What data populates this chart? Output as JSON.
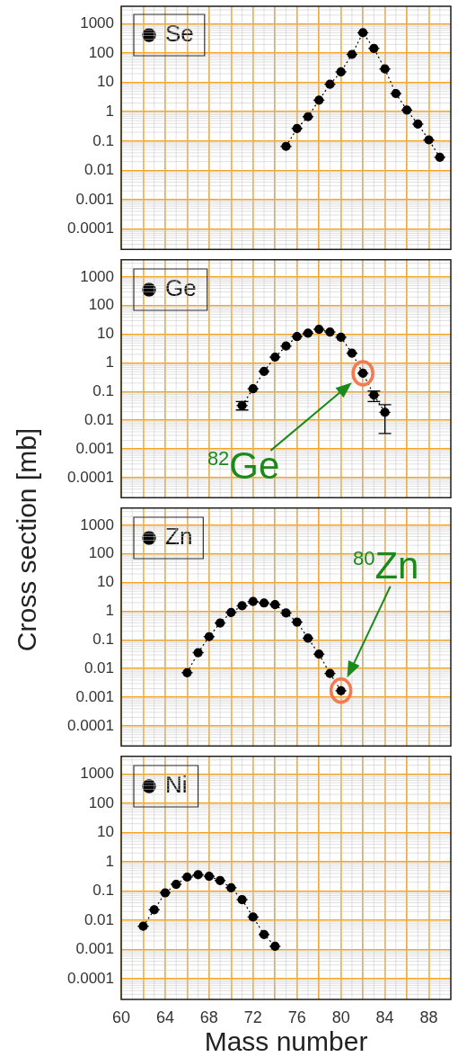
{
  "chart_data": [
    {
      "type": "line",
      "xlim": [
        60,
        90
      ],
      "xticks": [
        60,
        {
          "value": 62,
          "label": null
        },
        64,
        {
          "value": 66,
          "label": null
        },
        68,
        {
          "value": 70,
          "label": null
        },
        72,
        {
          "value": 74,
          "label": null
        },
        76,
        {
          "value": 78,
          "label": null
        },
        80,
        {
          "value": 82,
          "label": null
        },
        84,
        {
          "value": 86,
          "label": null
        },
        88
      ],
      "ylim": [
        2e-05,
        4000
      ],
      "yticks": [
        0.0001,
        0.001,
        0.01,
        0.1,
        1,
        10,
        100,
        1000
      ],
      "log": "y",
      "grid": true,
      "legend": "top left",
      "marker": "circle",
      "line_style": "dotted",
      "tick_labels": "y",
      "series": [
        {
          "name": "Se",
          "color": "#000000",
          "x": [
            75,
            76,
            77,
            78,
            79,
            80,
            81,
            82,
            83,
            84,
            85,
            86,
            87,
            88,
            89
          ],
          "values": [
            0.066,
            0.27,
            0.68,
            2.5,
            8.7,
            23,
            91,
            500,
            146,
            29,
            4.2,
            1.15,
            0.38,
            0.11,
            0.028
          ],
          "xerrors": [
            0.5,
            0.5,
            0.5,
            0.5,
            0.5,
            0.5,
            0.5,
            0.5,
            0.5,
            0.5,
            0.5,
            0.5,
            0.5,
            0.5,
            0.5
          ]
        }
      ]
    },
    {
      "type": "line",
      "xlim": [
        60,
        90
      ],
      "xticks": [
        60,
        {
          "value": 62,
          "label": null
        },
        64,
        {
          "value": 66,
          "label": null
        },
        68,
        {
          "value": 70,
          "label": null
        },
        72,
        {
          "value": 74,
          "label": null
        },
        76,
        {
          "value": 78,
          "label": null
        },
        80,
        {
          "value": 82,
          "label": null
        },
        84,
        {
          "value": 86,
          "label": null
        },
        88
      ],
      "ylim": [
        2e-05,
        4000
      ],
      "yticks": [
        0.0001,
        0.001,
        0.01,
        0.1,
        1,
        10,
        100,
        1000
      ],
      "log": "y",
      "grid": true,
      "legend": "top left",
      "marker": "circle",
      "line_style": "dotted",
      "tick_labels": "y",
      "annotations": [
        {
          "text": "$^{82}$Ge",
          "x": 82,
          "y": 0.44
        }
      ],
      "series": [
        {
          "name": "Ge",
          "color": "#000000",
          "x": [
            71,
            72,
            73,
            74,
            75,
            76,
            77,
            78,
            79,
            80,
            81,
            82,
            83,
            84
          ],
          "values": [
            0.033,
            0.126,
            0.51,
            1.6,
            3.9,
            8.3,
            11,
            15,
            12,
            7.9,
            2.2,
            0.44,
            0.076,
            0.019
          ],
          "xerrors": [
            0.5,
            0.5,
            0.5,
            0.5,
            0.5,
            0.5,
            0.5,
            0.5,
            0.5,
            0.5,
            0.5,
            0.5,
            0.5,
            0.5
          ],
          "errors": [
            [
              0.023,
              0.045
            ],
            null,
            null,
            null,
            null,
            null,
            null,
            null,
            null,
            null,
            null,
            null,
            [
              0.045,
              0.105
            ],
            [
              0.0035,
              0.035
            ]
          ]
        }
      ]
    },
    {
      "type": "line",
      "xlim": [
        60,
        90
      ],
      "xticks": [
        60,
        {
          "value": 62,
          "label": null
        },
        64,
        {
          "value": 66,
          "label": null
        },
        68,
        {
          "value": 70,
          "label": null
        },
        72,
        {
          "value": 74,
          "label": null
        },
        76,
        {
          "value": 78,
          "label": null
        },
        80,
        {
          "value": 82,
          "label": null
        },
        84,
        {
          "value": 86,
          "label": null
        },
        88
      ],
      "ylim": [
        2e-05,
        4000
      ],
      "yticks": [
        0.0001,
        0.001,
        0.01,
        0.1,
        1,
        10,
        100,
        1000
      ],
      "log": "y",
      "grid": true,
      "legend": "top left",
      "marker": "circle",
      "line_style": "dotted",
      "tick_labels": "y",
      "ylabel": "Cross section [mb]",
      "annotations": [
        {
          "text": "$^{80}$Zn",
          "x": 80,
          "y": 0.0017
        }
      ],
      "series": [
        {
          "name": "Zn",
          "color": "#000000",
          "x": [
            66,
            67,
            68,
            69,
            70,
            71,
            72,
            73,
            74,
            75,
            76,
            77,
            78,
            79,
            80
          ],
          "values": [
            0.0072,
            0.036,
            0.13,
            0.39,
            0.91,
            1.55,
            2.2,
            1.95,
            1.7,
            0.87,
            0.42,
            0.115,
            0.032,
            0.0068,
            0.0017
          ],
          "xerrors": [
            0.5,
            0.5,
            0.5,
            0.5,
            0.5,
            0.5,
            0.5,
            0.5,
            0.5,
            0.5,
            0.5,
            0.5,
            0.5,
            0.5,
            0.5
          ]
        }
      ]
    },
    {
      "type": "line",
      "xlabel": "Mass number",
      "xlim": [
        60,
        90
      ],
      "xticks": [
        60,
        {
          "value": 62,
          "label": null
        },
        64,
        {
          "value": 66,
          "label": null
        },
        68,
        {
          "value": 70,
          "label": null
        },
        72,
        {
          "value": 74,
          "label": null
        },
        76,
        {
          "value": 78,
          "label": null
        },
        80,
        {
          "value": 82,
          "label": null
        },
        84,
        {
          "value": 86,
          "label": null
        },
        88
      ],
      "ylim": [
        2e-05,
        4000
      ],
      "yticks": [
        0.0001,
        0.001,
        0.01,
        0.1,
        1,
        10,
        100,
        1000
      ],
      "log": "y",
      "grid": true,
      "legend": "top left",
      "marker": "circle",
      "line_style": "dotted",
      "series": [
        {
          "name": "Ni",
          "color": "#000000",
          "x": [
            62,
            63,
            64,
            65,
            66,
            67,
            68,
            69,
            70,
            71,
            72,
            73,
            74
          ],
          "values": [
            0.0063,
            0.023,
            0.087,
            0.17,
            0.3,
            0.36,
            0.32,
            0.23,
            0.13,
            0.051,
            0.013,
            0.0033,
            0.0013
          ],
          "xerrors": [
            0.5,
            0.5,
            0.5,
            0.5,
            0.5,
            0.5,
            0.5,
            0.5,
            0.5,
            0.5,
            0.5,
            0.5,
            0.5
          ]
        }
      ]
    }
  ]
}
